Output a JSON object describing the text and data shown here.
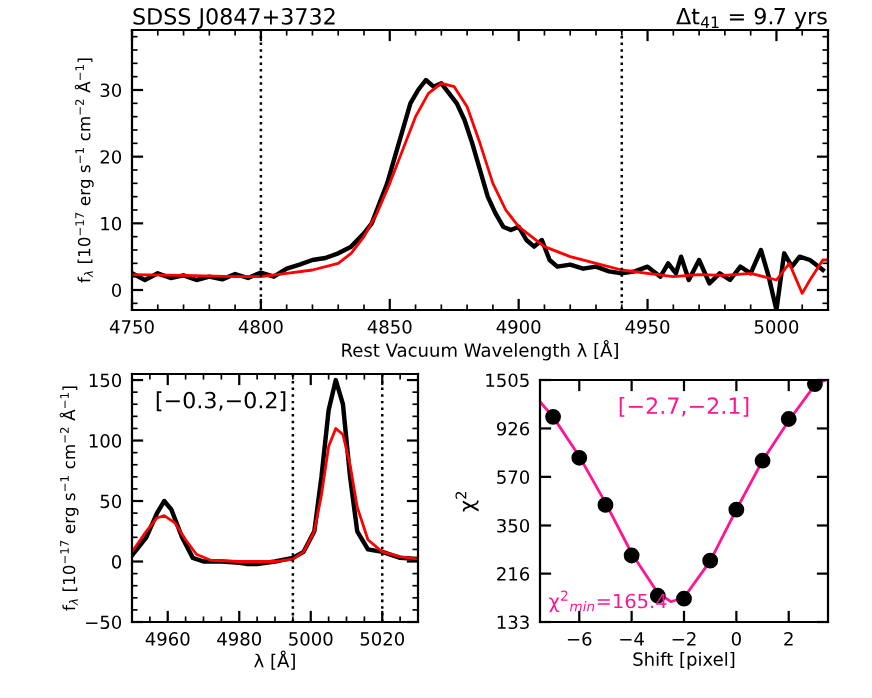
{
  "chart_data": [
    {
      "type": "line",
      "title": "SDSS J0847+3732",
      "subtitle": "Δt$_{41}$ = 9.7 yrs",
      "xlabel": "Rest Vacuum Wavelength λ [Å]",
      "ylabel": "f$_{λ}$ [10$^{−17}$ erg s$^{−1}$ cm$^{−2}$ Å$^{−1}$]",
      "xlim": [
        4750,
        5020
      ],
      "ylim": [
        -3,
        39
      ],
      "xticks": [
        4750,
        4800,
        4850,
        4900,
        4950,
        5000
      ],
      "yticks": [
        0,
        10,
        20,
        30
      ],
      "grid": false,
      "legend": false,
      "ref_lines": [
        {
          "axis": "x",
          "value": 4800,
          "color": "#000000",
          "line_style": "dotted"
        },
        {
          "axis": "x",
          "value": 4940,
          "color": "#000000",
          "line_style": "dotted"
        }
      ],
      "series": [
        {
          "color": "#000000",
          "x": [
            4750,
            4755,
            4760,
            4765,
            4770,
            4775,
            4780,
            4785,
            4790,
            4795,
            4800,
            4805,
            4810,
            4815,
            4820,
            4825,
            4830,
            4835,
            4840,
            4843,
            4846,
            4849,
            4852,
            4855,
            4858,
            4861,
            4864,
            4867,
            4870,
            4873,
            4876,
            4879,
            4882,
            4885,
            4888,
            4891,
            4894,
            4897,
            4900,
            4903,
            4906,
            4909,
            4912,
            4915,
            4920,
            4925,
            4930,
            4935,
            4940,
            4945,
            4950,
            4955,
            4958,
            4961,
            4963,
            4966,
            4970,
            4974,
            4978,
            4982,
            4986,
            4990,
            4994,
            4997,
            5000,
            5003,
            5006,
            5009,
            5013,
            5018
          ],
          "values": [
            2.5,
            1.5,
            2.5,
            1.8,
            2.2,
            1.5,
            2.0,
            1.6,
            2.4,
            1.8,
            2.6,
            2.0,
            3.2,
            3.8,
            4.5,
            4.8,
            5.5,
            6.5,
            8.5,
            10,
            13,
            16,
            20,
            24,
            28,
            30,
            31.5,
            30.5,
            31,
            29.5,
            28,
            25.5,
            22,
            18,
            14,
            11.5,
            9.5,
            9,
            9.5,
            7.5,
            6.5,
            7.5,
            4.5,
            3.5,
            3.8,
            3.2,
            3.5,
            2.8,
            2.5,
            2.8,
            3.5,
            2.0,
            4.0,
            2.5,
            5.0,
            1.5,
            4.5,
            1.0,
            2.5,
            1.5,
            3.5,
            2.5,
            6.0,
            2.0,
            -3.0,
            5.5,
            3.5,
            5.0,
            4.5,
            3.0
          ]
        },
        {
          "color": "#ff0000",
          "x": [
            4750,
            4770,
            4790,
            4800,
            4810,
            4820,
            4830,
            4835,
            4840,
            4845,
            4850,
            4855,
            4860,
            4865,
            4870,
            4875,
            4880,
            4885,
            4890,
            4895,
            4900,
            4905,
            4910,
            4920,
            4930,
            4940,
            4950,
            4960,
            4970,
            4980,
            4990,
            5000,
            5005,
            5010,
            5013,
            5018,
            5020
          ],
          "values": [
            2.3,
            2.2,
            2.0,
            2.0,
            2.5,
            3.0,
            4.0,
            5.5,
            8,
            11.5,
            16,
            21,
            26,
            29.5,
            31,
            30.5,
            27.5,
            22,
            16,
            12,
            9.5,
            8,
            6.5,
            5.0,
            4.0,
            3.0,
            2.5,
            2.0,
            2.3,
            2.2,
            2.5,
            1.5,
            4.0,
            -0.5,
            1.5,
            4.5,
            4.5
          ]
        }
      ]
    },
    {
      "type": "line",
      "xlabel": "λ [Å]",
      "ylabel": "f$_{λ}$ [10$^{−17}$ erg s$^{−1}$ cm$^{−2}$ Å$^{−1}$]",
      "annotations": [
        "[−0.3,−0.2]"
      ],
      "xlim": [
        4950,
        5030
      ],
      "ylim": [
        -50,
        155
      ],
      "xticks": [
        4960,
        4980,
        5000,
        5020
      ],
      "yticks": [
        -50,
        0,
        50,
        100,
        150
      ],
      "grid": false,
      "legend": false,
      "ref_lines": [
        {
          "axis": "x",
          "value": 4995,
          "color": "#000000",
          "line_style": "dotted"
        },
        {
          "axis": "x",
          "value": 5020,
          "color": "#000000",
          "line_style": "dotted"
        }
      ],
      "series": [
        {
          "color": "#000000",
          "x": [
            4950,
            4954,
            4957,
            4959,
            4961,
            4964,
            4967,
            4970,
            4975,
            4980,
            4982,
            4985,
            4990,
            4995,
            4998,
            5001,
            5003,
            5005,
            5007,
            5009,
            5011,
            5013,
            5016,
            5020,
            5025,
            5030
          ],
          "values": [
            5,
            20,
            40,
            50,
            43,
            20,
            3,
            0,
            0,
            -1,
            -2,
            -2,
            0,
            3,
            8,
            25,
            70,
            125,
            150,
            130,
            70,
            25,
            10,
            8,
            3,
            2
          ]
        },
        {
          "color": "#ff0000",
          "x": [
            4950,
            4954,
            4957,
            4959,
            4962,
            4965,
            4968,
            4972,
            4980,
            4990,
            4995,
            4998,
            5001,
            5003,
            5005,
            5007,
            5009,
            5011,
            5013,
            5016,
            5020,
            5025,
            5030
          ],
          "values": [
            8,
            25,
            36,
            38,
            32,
            18,
            6,
            1,
            0,
            0,
            2,
            8,
            25,
            55,
            95,
            110,
            105,
            80,
            45,
            18,
            8,
            4,
            2
          ]
        }
      ]
    },
    {
      "type": "scatter",
      "xlabel": "Shift [pixel]",
      "ylabel": "χ$^{2}$",
      "annotations": [
        "[−2.7,−2.1]",
        "χ$^{2}$$_{min}$=165.4"
      ],
      "log": "y",
      "xlim": [
        -7.5,
        3.5
      ],
      "ylim": [
        133,
        1505
      ],
      "xticks": [
        -6,
        -4,
        -2,
        0,
        2
      ],
      "yticks": [
        133,
        216,
        350,
        570,
        926,
        1505
      ],
      "grid": false,
      "legend": false,
      "series": [
        {
          "color": "#000000",
          "marker": "circle",
          "x": [
            -7,
            -6,
            -5,
            -4,
            -3,
            -2,
            -1,
            0,
            1,
            2,
            3
          ],
          "values": [
            1040,
            690,
            430,
            259,
            173,
            168,
            246,
            410,
            670,
            1018,
            1445
          ]
        },
        {
          "type": "line",
          "color": "#ff1493",
          "x": [
            -7.5,
            -7,
            -6,
            -5,
            -4,
            -3,
            -2.5,
            -2,
            -1,
            0,
            1,
            2,
            3,
            3.4
          ],
          "values": [
            1210,
            1040,
            700,
            440,
            265,
            178,
            163,
            170,
            245,
            410,
            670,
            1000,
            1430,
            1505
          ]
        }
      ]
    }
  ]
}
